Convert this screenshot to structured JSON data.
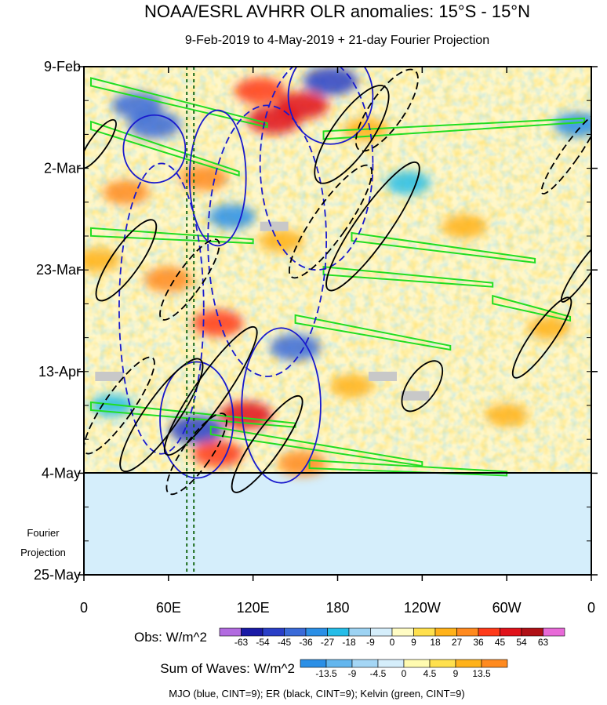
{
  "chart_data": {
    "type": "heatmap",
    "title": "NOAA/ESRL AVHRR OLR anomalies: 15°S - 15°N",
    "subtitle": "9-Feb-2019 to 4-May-2019 + 21-day Fourier Projection",
    "xlabel": "",
    "ylabel": "",
    "x_ticks": [
      "0",
      "60E",
      "120E",
      "180",
      "120W",
      "60W",
      "0"
    ],
    "x_tick_values": [
      0,
      60,
      120,
      180,
      240,
      300,
      360
    ],
    "xlim": [
      0,
      360
    ],
    "y_ticks": [
      "9-Feb",
      "2-Mar",
      "23-Mar",
      "13-Apr",
      "4-May",
      "25-May"
    ],
    "y_tick_values": [
      0,
      21,
      42,
      63,
      84,
      105
    ],
    "ylim": [
      0,
      105
    ],
    "obs_end_day": 84,
    "projection_label": [
      "Fourier",
      "Projection"
    ],
    "obs_colorbar": {
      "label": "Obs: W/m^2",
      "levels": [
        "-63",
        "-54",
        "-45",
        "-36",
        "-27",
        "-18",
        "-9",
        "0",
        "9",
        "18",
        "27",
        "36",
        "45",
        "54",
        "63"
      ],
      "colors": [
        "#b26be0",
        "#1a1aa6",
        "#2a3fc7",
        "#3a6ad8",
        "#2b8fe6",
        "#26bde8",
        "#9dd3f3",
        "#d5eefb",
        "#fffcc4",
        "#ffe04d",
        "#ffb21a",
        "#ff8a1f",
        "#ff3b1a",
        "#e0121a",
        "#b01016",
        "#e86ad8"
      ]
    },
    "waves_colorbar": {
      "label": "Sum of Waves: W/m^2",
      "levels": [
        "-13.5",
        "-9",
        "-4.5",
        "0",
        "4.5",
        "9",
        "13.5"
      ],
      "colors": [
        "#2b8fe6",
        "#63b6ee",
        "#a4d6f5",
        "#d5eefb",
        "#fffbb0",
        "#ffe04d",
        "#ffb21a",
        "#ff8a1f"
      ]
    },
    "legend_note": "MJO (blue, CINT=9); ER (black, CINT=9); Kelvin (green, CINT=9)",
    "series": [
      {
        "name": "MJO",
        "color": "#1a1acc",
        "cint": 9
      },
      {
        "name": "ER",
        "color": "#000000",
        "cint": 9
      },
      {
        "name": "Kelvin",
        "color": "#22dd22",
        "cint": 9
      }
    ],
    "anomaly_blobs": [
      {
        "lon": 38,
        "day": 8,
        "v": -40
      },
      {
        "lon": 50,
        "day": 12,
        "v": -45
      },
      {
        "lon": 125,
        "day": 5,
        "v": 40
      },
      {
        "lon": 135,
        "day": 11,
        "v": 48
      },
      {
        "lon": 155,
        "day": 8,
        "v": 45
      },
      {
        "lon": 175,
        "day": 3,
        "v": -50
      },
      {
        "lon": 200,
        "day": 13,
        "v": 25
      },
      {
        "lon": 230,
        "day": 24,
        "v": -25
      },
      {
        "lon": 30,
        "day": 26,
        "v": 30
      },
      {
        "lon": 85,
        "day": 23,
        "v": 35
      },
      {
        "lon": 105,
        "day": 31,
        "v": -30
      },
      {
        "lon": 140,
        "day": 36,
        "v": 25
      },
      {
        "lon": 60,
        "day": 44,
        "v": 35
      },
      {
        "lon": 95,
        "day": 53,
        "v": 40
      },
      {
        "lon": 150,
        "day": 58,
        "v": -40
      },
      {
        "lon": 270,
        "day": 33,
        "v": 25
      },
      {
        "lon": 330,
        "day": 54,
        "v": 20
      },
      {
        "lon": 20,
        "day": 70,
        "v": -20
      },
      {
        "lon": 80,
        "day": 75,
        "v": -50
      },
      {
        "lon": 115,
        "day": 72,
        "v": 45
      },
      {
        "lon": 95,
        "day": 80,
        "v": 40
      },
      {
        "lon": 155,
        "day": 82,
        "v": 35
      },
      {
        "lon": 190,
        "day": 66,
        "v": 20
      },
      {
        "lon": 300,
        "day": 72,
        "v": 20
      },
      {
        "lon": 350,
        "day": 12,
        "v": -30
      },
      {
        "lon": 10,
        "day": 40,
        "v": 25
      }
    ],
    "kelvin_bands": [
      {
        "lon0": 5,
        "day0": 3,
        "lon1": 130,
        "day1": 12
      },
      {
        "lon0": 5,
        "day0": 12,
        "lon1": 110,
        "day1": 22
      },
      {
        "lon0": 170,
        "day0": 14,
        "lon1": 355,
        "day1": 11
      },
      {
        "lon0": 5,
        "day0": 34,
        "lon1": 120,
        "day1": 36
      },
      {
        "lon0": 190,
        "day0": 35,
        "lon1": 320,
        "day1": 40
      },
      {
        "lon0": 170,
        "day0": 42,
        "lon1": 290,
        "day1": 45
      },
      {
        "lon0": 150,
        "day0": 52,
        "lon1": 260,
        "day1": 58
      },
      {
        "lon0": 290,
        "day0": 48,
        "lon1": 345,
        "day1": 52
      },
      {
        "lon0": 5,
        "day0": 70,
        "lon1": 150,
        "day1": 74
      },
      {
        "lon0": 90,
        "day0": 75,
        "lon1": 240,
        "day1": 82
      },
      {
        "lon0": 160,
        "day0": 82,
        "lon1": 300,
        "day1": 84
      }
    ],
    "mjo_contours": [
      {
        "lon": 50,
        "day": 17,
        "dlon": 22,
        "dday": 7,
        "dashed": false
      },
      {
        "lon": 95,
        "day": 23,
        "dlon": 20,
        "dday": 14,
        "dashed": false
      },
      {
        "lon": 130,
        "day": 36,
        "dlon": 42,
        "dday": 28,
        "dashed": true
      },
      {
        "lon": 175,
        "day": 6,
        "dlon": 30,
        "dday": 10,
        "dashed": false
      },
      {
        "lon": 165,
        "day": 20,
        "dlon": 40,
        "dday": 22,
        "dashed": true
      },
      {
        "lon": 55,
        "day": 50,
        "dlon": 30,
        "dday": 30,
        "dashed": true
      },
      {
        "lon": 80,
        "day": 73,
        "dlon": 26,
        "dday": 12,
        "dashed": false
      },
      {
        "lon": 140,
        "day": 70,
        "dlon": 28,
        "dday": 16,
        "dashed": false
      }
    ],
    "er_contours": [
      {
        "lon": 190,
        "day": 14,
        "dlon": 14,
        "dday": 12,
        "rot": 35,
        "dashed": false
      },
      {
        "lon": 215,
        "day": 9,
        "dlon": 12,
        "dday": 10,
        "rot": 35,
        "dashed": true
      },
      {
        "lon": 205,
        "day": 33,
        "dlon": 12,
        "dday": 16,
        "rot": 35,
        "dashed": false
      },
      {
        "lon": 175,
        "day": 32,
        "dlon": 12,
        "dday": 14,
        "rot": 35,
        "dashed": true
      },
      {
        "lon": 30,
        "day": 40,
        "dlon": 10,
        "dday": 10,
        "rot": 35,
        "dashed": false
      },
      {
        "lon": 75,
        "day": 44,
        "dlon": 9,
        "dday": 10,
        "rot": 35,
        "dashed": true
      },
      {
        "lon": 90,
        "day": 67,
        "dlon": 11,
        "dday": 16,
        "rot": 35,
        "dashed": false
      },
      {
        "lon": 55,
        "day": 72,
        "dlon": 12,
        "dday": 14,
        "rot": 35,
        "dashed": false
      },
      {
        "lon": 25,
        "day": 70,
        "dlon": 10,
        "dday": 12,
        "rot": 35,
        "dashed": true
      },
      {
        "lon": 130,
        "day": 78,
        "dlon": 10,
        "dday": 12,
        "rot": 35,
        "dashed": false
      },
      {
        "lon": 240,
        "day": 66,
        "dlon": 10,
        "dday": 6,
        "rot": 35,
        "dashed": false
      },
      {
        "lon": 325,
        "day": 56,
        "dlon": 8,
        "dday": 10,
        "rot": 35,
        "dashed": false
      },
      {
        "lon": 345,
        "day": 18,
        "dlon": 6,
        "dday": 10,
        "rot": 35,
        "dashed": true
      },
      {
        "lon": 355,
        "day": 42,
        "dlon": 5,
        "dday": 8,
        "rot": 35,
        "dashed": false
      },
      {
        "lon": 10,
        "day": 16,
        "dlon": 6,
        "dday": 6,
        "rot": 35,
        "dashed": false
      },
      {
        "lon": 80,
        "day": 80,
        "dlon": 10,
        "dday": 10,
        "rot": 35,
        "dashed": true
      }
    ],
    "projection_tint": "#d5eefb",
    "reference_lines_lon": [
      73,
      78
    ],
    "missing_data_patches": [
      {
        "lon": 135,
        "day": 33
      },
      {
        "lon": 18,
        "day": 64
      },
      {
        "lon": 212,
        "day": 64
      },
      {
        "lon": 235,
        "day": 68
      }
    ]
  }
}
